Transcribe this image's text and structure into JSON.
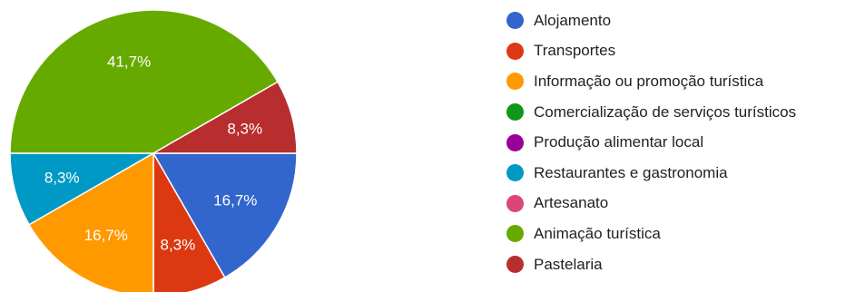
{
  "chart_data": {
    "type": "pie",
    "categories": [
      "Alojamento",
      "Transportes",
      "Informação ou promoção turística",
      "Comercialização de serviços turísticos",
      "Produção alimentar local",
      "Restaurantes e gastronomia",
      "Artesanato",
      "Animação turística",
      "Pastelaria"
    ],
    "values": [
      16.7,
      8.3,
      16.7,
      0,
      0,
      8.3,
      0,
      41.7,
      8.3
    ],
    "data_labels": [
      "16,7%",
      "8,3%",
      "16,7%",
      "",
      "",
      "8,3%",
      "",
      "41,7%",
      "8,3%"
    ],
    "colors": [
      "#3366CC",
      "#DC3912",
      "#FF9900",
      "#109618",
      "#990099",
      "#0099C6",
      "#DD4477",
      "#66AA00",
      "#B82E2E"
    ],
    "legend_position": "right"
  }
}
